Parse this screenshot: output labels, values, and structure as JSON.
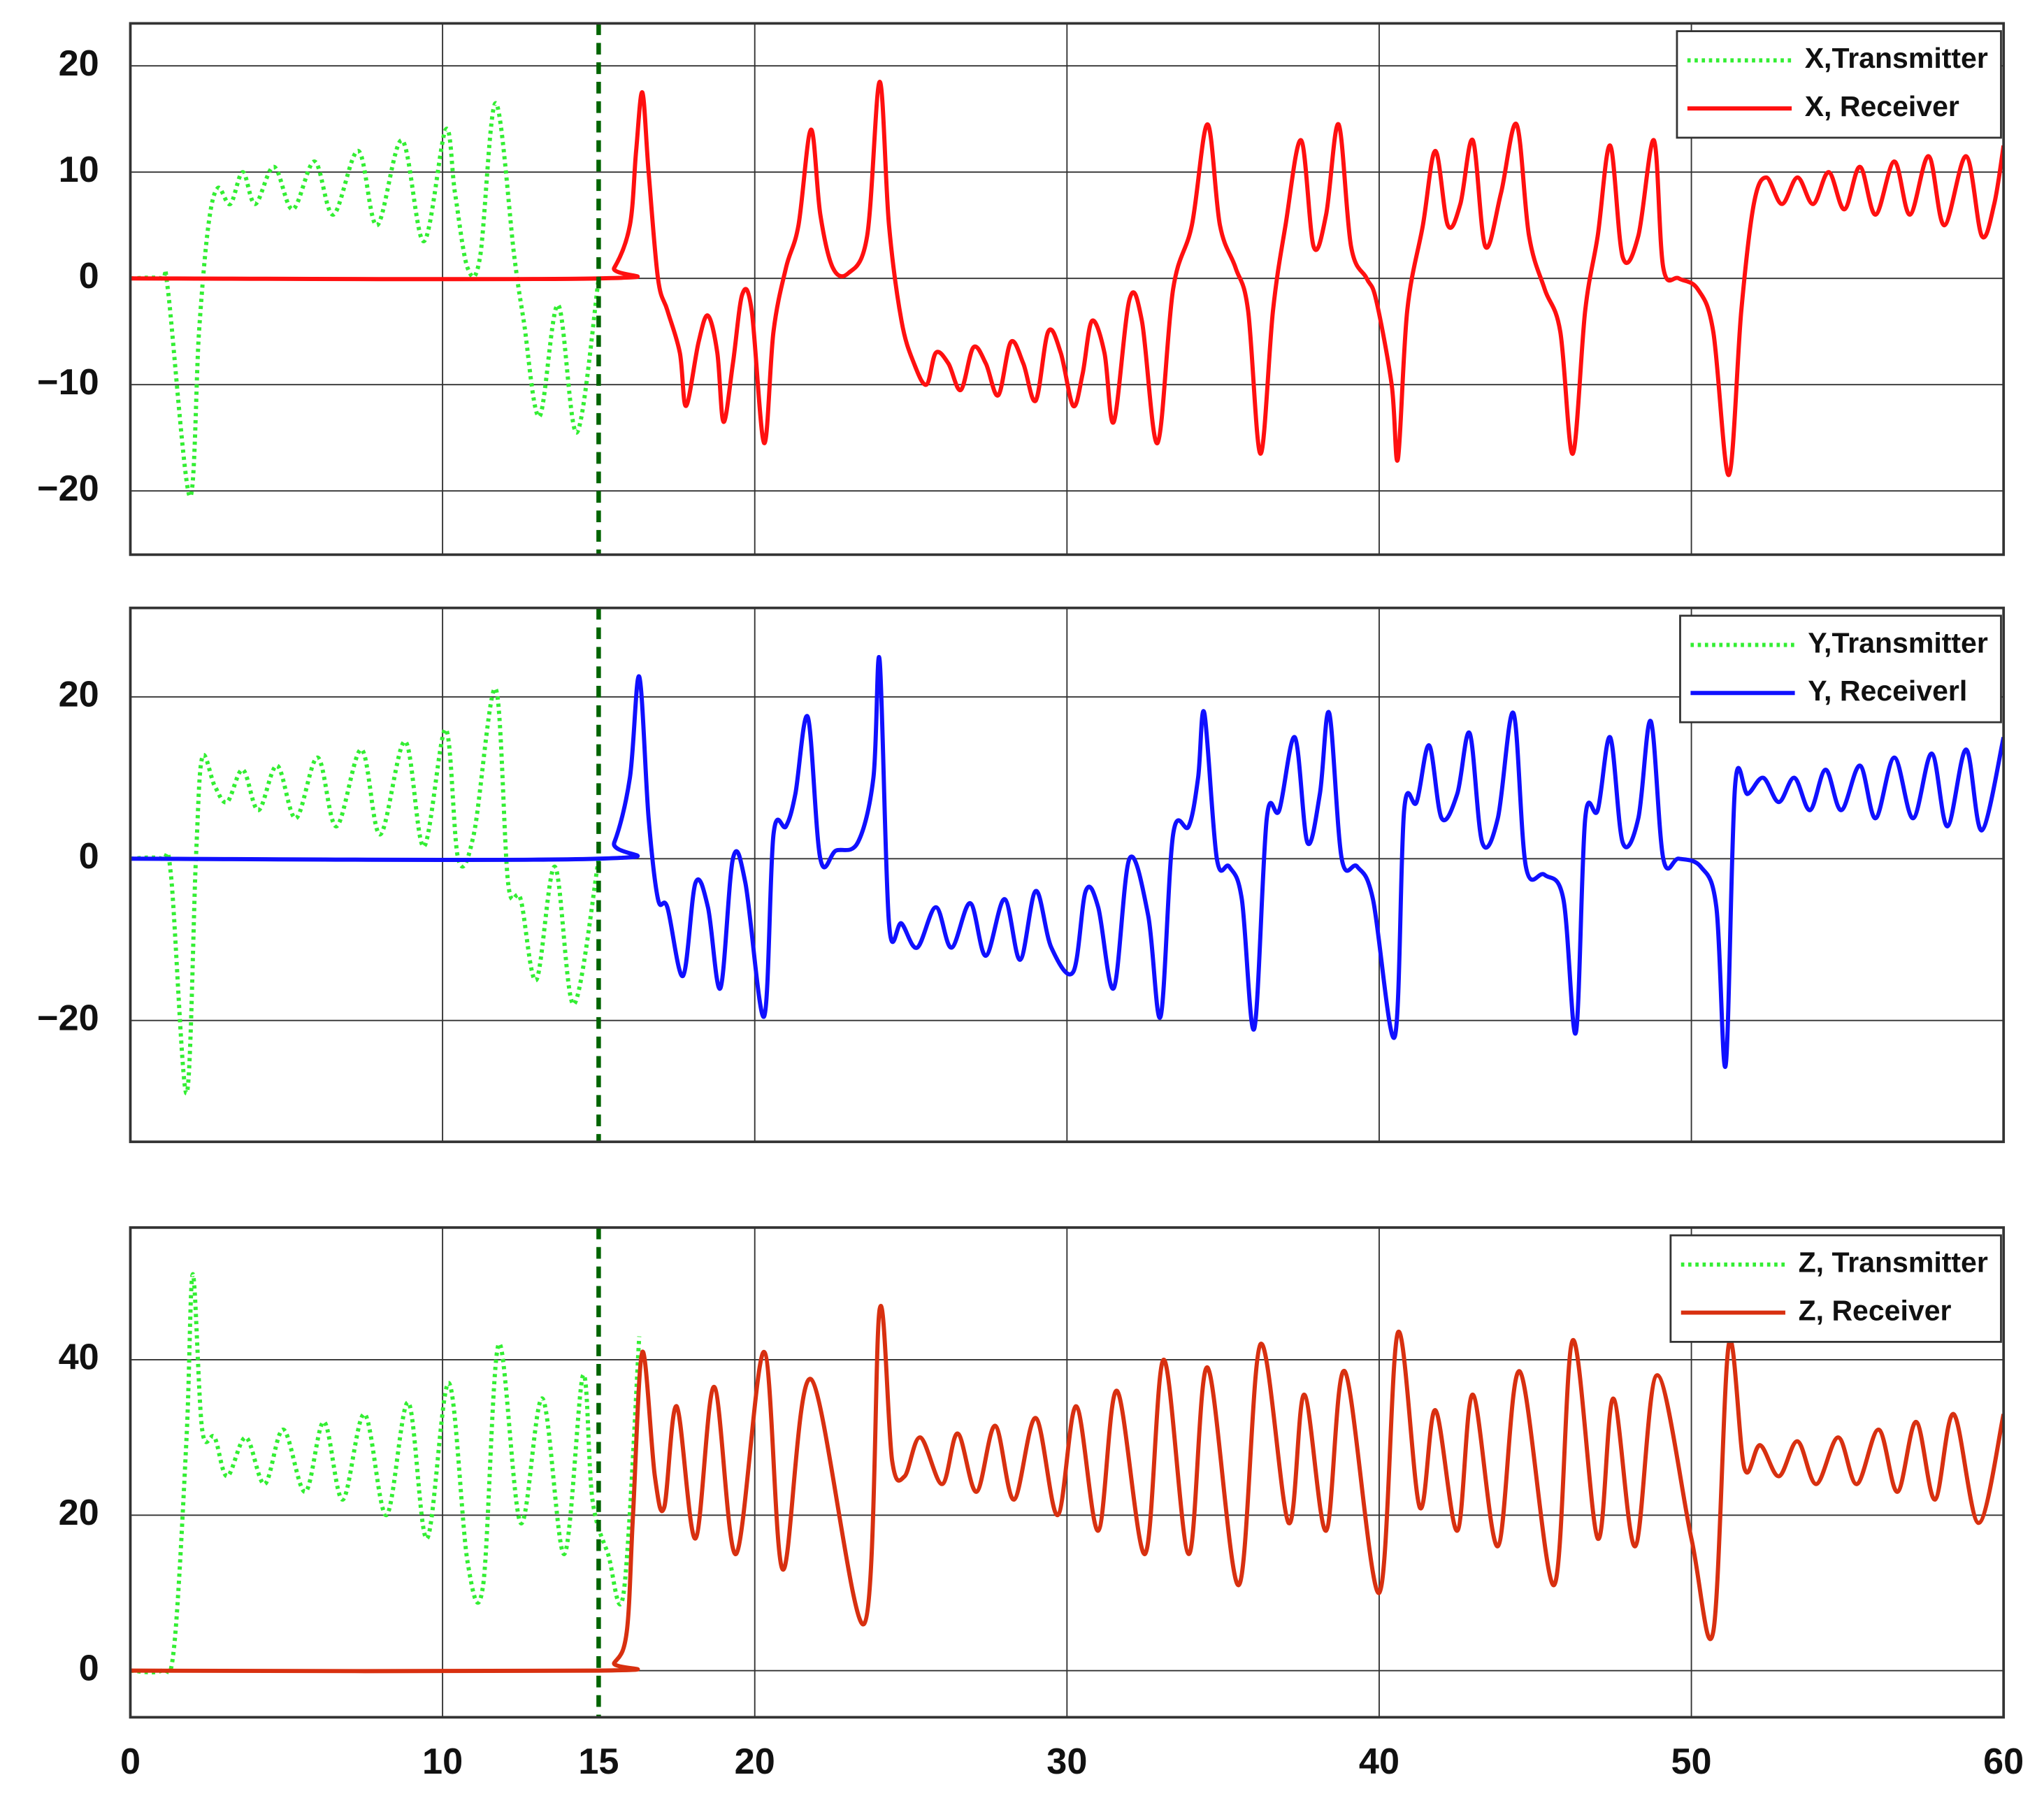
{
  "chart_data": [
    {
      "type": "line",
      "xlim": [
        0,
        60
      ],
      "xticks": [
        0,
        10,
        20,
        30,
        40,
        50,
        60
      ],
      "ylim": [
        -26,
        24
      ],
      "yticks": [
        {
          "value": -20,
          "label": "−20"
        },
        {
          "value": -10,
          "label": "−10"
        },
        0,
        10,
        20
      ],
      "grid": true,
      "legend": "upper right",
      "marker": {
        "x": 15,
        "color": "#006400"
      },
      "series": [
        {
          "name": "X,Transmitter",
          "color": "#33ee33",
          "style": "dotted",
          "x": [
            0,
            1,
            1.2,
            1.9,
            2.2,
            2.5,
            2.8,
            3.2,
            3.6,
            4.0,
            4.6,
            5.2,
            5.9,
            6.5,
            7.3,
            7.9,
            8.7,
            9.4,
            10.1,
            10.4,
            10.8,
            11.2,
            11.7,
            12.3,
            12.6,
            13.1,
            13.7,
            14.3,
            15
          ],
          "values": [
            0,
            0,
            -1,
            -20.5,
            -5,
            5,
            8.5,
            7,
            10,
            7,
            10.5,
            6.5,
            11,
            6,
            12,
            5,
            13,
            3.5,
            14,
            8,
            1,
            2,
            16.5,
            2,
            -4,
            -13,
            -2.5,
            -14.5,
            0
          ]
        },
        {
          "name": "X, Receiver",
          "color": "#ff1010",
          "style": "solid",
          "x": [
            0,
            15,
            15.5,
            16,
            16.2,
            16.4,
            16.6,
            16.9,
            17.2,
            17.6,
            17.8,
            18.2,
            18.5,
            18.8,
            19.0,
            19.3,
            19.6,
            19.9,
            20.3,
            20.6,
            21.0,
            21.4,
            21.8,
            22.1,
            22.5,
            23.0,
            23.6,
            24.0,
            24.3,
            24.7,
            25.1,
            25.5,
            25.8,
            26.2,
            26.6,
            27.0,
            27.4,
            27.8,
            28.2,
            28.6,
            29.0,
            29.4,
            29.8,
            30.2,
            30.5,
            30.8,
            31.2,
            31.5,
            32.0,
            32.4,
            32.9,
            33.4,
            34.0,
            34.5,
            34.9,
            35.4,
            35.8,
            36.2,
            36.6,
            37.0,
            37.5,
            37.9,
            38.3,
            38.7,
            39.1,
            39.6,
            39.9,
            40.4,
            40.6,
            40.9,
            41.4,
            41.8,
            42.2,
            42.6,
            43.0,
            43.4,
            43.9,
            44.4,
            44.8,
            45.3,
            45.8,
            46.2,
            46.6,
            47.0,
            47.4,
            47.8,
            48.3,
            48.8,
            49.1,
            49.6,
            50.2,
            50.7,
            51.2,
            51.6,
            52.0,
            52.4,
            52.9,
            53.4,
            53.9,
            54.4,
            54.9,
            55.4,
            55.9,
            56.5,
            57.0,
            57.6,
            58.1,
            58.8,
            59.3,
            59.7,
            60
          ],
          "values": [
            0,
            0,
            1,
            5,
            12,
            17.5,
            10,
            0,
            -3,
            -7,
            -12,
            -6,
            -3.5,
            -7,
            -13.5,
            -8,
            -1.5,
            -3,
            -15.5,
            -5,
            1,
            5,
            14,
            6,
            1,
            0.5,
            4,
            18.5,
            5,
            -4,
            -8,
            -10,
            -7,
            -8,
            -10.5,
            -6.5,
            -8,
            -11,
            -6,
            -8,
            -11.5,
            -5,
            -7,
            -12,
            -9,
            -4,
            -7,
            -13.5,
            -2,
            -4,
            -15.5,
            -1,
            5,
            14.5,
            5,
            1,
            -3,
            -16.5,
            -3,
            5,
            13,
            3,
            6,
            14.5,
            3,
            0,
            -2,
            -10,
            -17,
            -3,
            5,
            12,
            5,
            7,
            13,
            3,
            8,
            14.5,
            4,
            -1,
            -5,
            -16.5,
            -3,
            4,
            12.5,
            2,
            4,
            13,
            1,
            0,
            -1,
            -5,
            -18.5,
            -3,
            7,
            9.5,
            7,
            9.5,
            7,
            10,
            6.5,
            10.5,
            6,
            11,
            6,
            11.5,
            5,
            11.5,
            4,
            7,
            12.5
          ]
        }
      ]
    },
    {
      "type": "line",
      "xlim": [
        0,
        60
      ],
      "xticks": [
        0,
        10,
        20,
        30,
        40,
        50,
        60
      ],
      "ylim": [
        -35,
        31
      ],
      "yticks": [
        {
          "value": -20,
          "label": "−20"
        },
        0,
        20
      ],
      "grid": true,
      "legend": "upper right",
      "marker": {
        "x": 15,
        "color": "#006400"
      },
      "series": [
        {
          "name": "Y,Transmitter",
          "color": "#33ee33",
          "style": "dotted",
          "x": [
            0,
            1,
            1.3,
            1.8,
            2.1,
            2.3,
            2.7,
            3.1,
            3.6,
            4.1,
            4.7,
            5.3,
            6.0,
            6.6,
            7.4,
            8.0,
            8.8,
            9.4,
            10.1,
            10.5,
            11.0,
            11.7,
            12.1,
            12.5,
            13.0,
            13.6,
            14.2,
            15
          ],
          "values": [
            0,
            0,
            -2,
            -29,
            0,
            12.5,
            9,
            7,
            11,
            6,
            11.5,
            5,
            12.5,
            4,
            13.5,
            3,
            14.5,
            1.5,
            16,
            0,
            3,
            21,
            -3,
            -5,
            -15,
            -1,
            -18,
            0
          ]
        },
        {
          "name": "Y, Receiverl",
          "color": "#1010ff",
          "style": "solid",
          "x": [
            0,
            15,
            15.5,
            16.0,
            16.3,
            16.6,
            16.9,
            17.2,
            17.7,
            18.1,
            18.5,
            18.9,
            19.3,
            19.7,
            20.3,
            20.6,
            21.0,
            21.3,
            21.7,
            22.1,
            22.6,
            23.3,
            23.8,
            24.0,
            24.3,
            24.7,
            25.2,
            25.8,
            26.3,
            26.9,
            27.4,
            28.0,
            28.5,
            29.0,
            29.5,
            30.2,
            30.6,
            31.0,
            31.5,
            32.0,
            32.6,
            33.0,
            33.4,
            33.9,
            34.2,
            34.4,
            34.8,
            35.2,
            35.6,
            36.0,
            36.4,
            36.8,
            37.3,
            37.7,
            38.1,
            38.4,
            38.8,
            39.3,
            39.8,
            40.5,
            40.8,
            41.2,
            41.6,
            42.0,
            42.5,
            42.9,
            43.3,
            43.8,
            44.3,
            44.7,
            45.3,
            45.9,
            46.3,
            46.6,
            47.0,
            47.4,
            47.8,
            48.3,
            48.7,
            49.1,
            49.6,
            50.3,
            50.8,
            51.1,
            51.4,
            51.8,
            52.3,
            52.8,
            53.3,
            53.8,
            54.3,
            54.8,
            55.4,
            55.9,
            56.5,
            57.1,
            57.7,
            58.2,
            58.8,
            59.3,
            60
          ],
          "values": [
            0,
            0,
            2,
            10,
            22.5,
            5,
            -5,
            -6,
            -14.5,
            -3,
            -6,
            -16,
            0,
            -3,
            -19.5,
            3,
            4,
            8,
            17.5,
            0,
            1,
            2,
            10,
            24.5,
            -8,
            -8,
            -11,
            -6,
            -11,
            -5.5,
            -12,
            -5,
            -12.5,
            -4,
            -11,
            -14,
            -4,
            -6,
            -16,
            0,
            -7,
            -19.5,
            3,
            4,
            10,
            18,
            0,
            -1,
            -5,
            -21,
            5,
            6,
            15,
            2,
            8,
            18,
            0,
            -1,
            -5,
            -22,
            6,
            7,
            14,
            5,
            8,
            15.5,
            2,
            5,
            18,
            -1,
            -2,
            -5,
            -21.5,
            5,
            6,
            15,
            2,
            5,
            17,
            0,
            0,
            -1,
            -6,
            -25.5,
            9,
            8,
            10,
            7,
            10,
            6,
            11,
            6,
            11.5,
            5,
            12.5,
            5,
            13,
            4,
            13.5,
            3.5,
            15
          ]
        }
      ]
    },
    {
      "type": "line",
      "xlim": [
        0,
        60
      ],
      "xticks": [
        0,
        10,
        20,
        30,
        40,
        50,
        60
      ],
      "show_xtick_labels": true,
      "ylim": [
        -6,
        57
      ],
      "yticks": [
        0,
        20,
        40
      ],
      "grid": true,
      "legend": "upper right",
      "marker": {
        "x": 15,
        "color": "#006400"
      },
      "series": [
        {
          "name": "Z, Transmitter",
          "color": "#33ee33",
          "style": "dotted",
          "x": [
            0,
            1,
            1.4,
            1.8,
            2.0,
            2.3,
            2.7,
            3.1,
            3.7,
            4.3,
            4.9,
            5.6,
            6.2,
            6.8,
            7.5,
            8.2,
            8.9,
            9.5,
            10.2,
            10.8,
            11.3,
            11.8,
            12.5,
            13.2,
            13.9,
            14.5,
            14.8,
            15.3,
            15.8,
            16.3
          ],
          "values": [
            0,
            0,
            3,
            30,
            51,
            31,
            30,
            25,
            30,
            24,
            31,
            23,
            32,
            22,
            33,
            20,
            34.5,
            17,
            37,
            14,
            11,
            42,
            19,
            35,
            15,
            38,
            22,
            15,
            10,
            43
          ]
        },
        {
          "name": "Z, Receiver",
          "color": "#d83010",
          "style": "solid",
          "x": [
            0,
            15,
            15.5,
            15.9,
            16.1,
            16.4,
            16.8,
            17.1,
            17.5,
            18.1,
            18.7,
            19.4,
            20.3,
            20.9,
            21.8,
            23.5,
            24.0,
            24.4,
            24.8,
            25.3,
            26.0,
            26.5,
            27.1,
            27.7,
            28.3,
            29.0,
            29.7,
            30.3,
            31.0,
            31.6,
            32.5,
            33.1,
            33.9,
            34.5,
            35.5,
            36.2,
            37.1,
            37.6,
            38.3,
            38.9,
            40.0,
            40.6,
            41.3,
            41.8,
            42.5,
            43.0,
            43.8,
            44.5,
            45.6,
            46.2,
            47.0,
            47.5,
            48.2,
            48.9,
            50.0,
            50.7,
            51.2,
            51.7,
            52.2,
            52.8,
            53.4,
            54.0,
            54.7,
            55.3,
            56.0,
            56.6,
            57.2,
            57.8,
            58.4,
            59.2,
            60
          ],
          "values": [
            0,
            0,
            1,
            5,
            20,
            41,
            25,
            21,
            34,
            17,
            36.5,
            15,
            41,
            13,
            37.5,
            6,
            46.5,
            27,
            25,
            30,
            24,
            30.5,
            23,
            31.5,
            22,
            32.5,
            20,
            34,
            18,
            36,
            15,
            40,
            15,
            39,
            11,
            42,
            19,
            35.5,
            18,
            38.5,
            10,
            43.5,
            21,
            33.5,
            18,
            35.5,
            16,
            38.5,
            11,
            42.5,
            17,
            35,
            16,
            38,
            17,
            5,
            42,
            26,
            29,
            25,
            29.5,
            24,
            30,
            24,
            31,
            23,
            32,
            22,
            33,
            19,
            33
          ]
        }
      ]
    }
  ]
}
